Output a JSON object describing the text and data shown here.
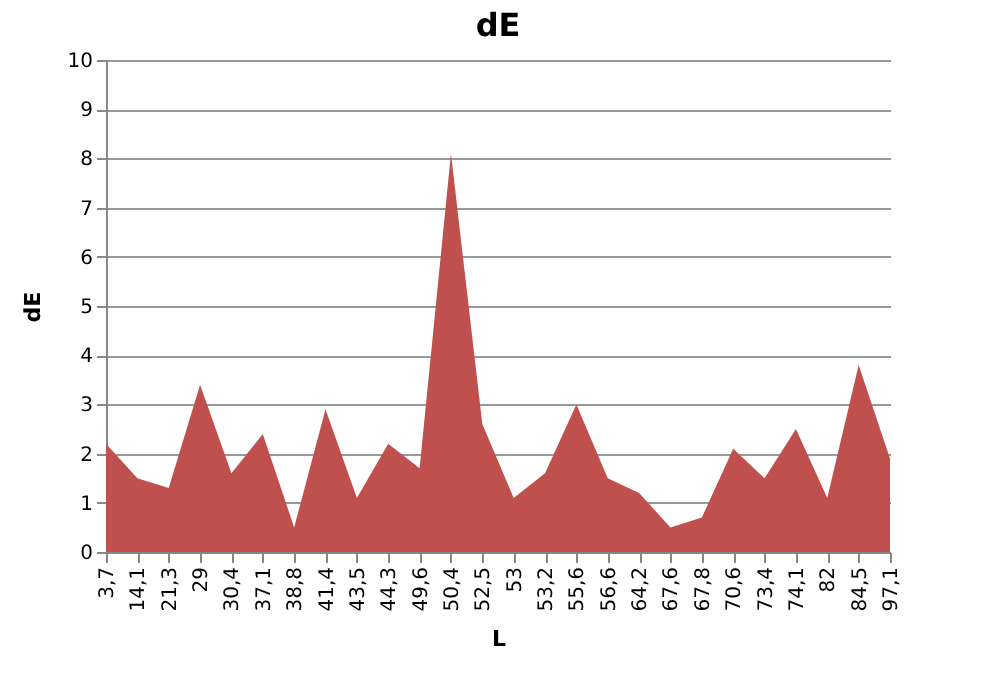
{
  "chart_data": {
    "type": "area",
    "title": "dE",
    "xlabel": "L",
    "ylabel": "dE",
    "categories": [
      "3,7",
      "14,1",
      "21,3",
      "29",
      "30,4",
      "37,1",
      "38,8",
      "41,4",
      "43,5",
      "44,3",
      "49,6",
      "50,4",
      "52,5",
      "53",
      "53,2",
      "55,6",
      "56,6",
      "64,2",
      "67,6",
      "67,8",
      "70,6",
      "73,4",
      "74,1",
      "82",
      "84,5",
      "97,1"
    ],
    "values": [
      2.2,
      1.5,
      1.3,
      3.4,
      1.6,
      2.4,
      0.5,
      2.9,
      1.1,
      2.2,
      1.7,
      8.1,
      2.6,
      1.1,
      1.6,
      3.0,
      1.5,
      1.2,
      0.5,
      0.7,
      2.1,
      1.5,
      2.5,
      1.1,
      3.8,
      1.9
    ],
    "color": "#c0504d",
    "ylim": [
      0,
      10
    ],
    "yticks": [
      0,
      1,
      2,
      3,
      4,
      5,
      6,
      7,
      8,
      9,
      10
    ],
    "grid": "y"
  }
}
